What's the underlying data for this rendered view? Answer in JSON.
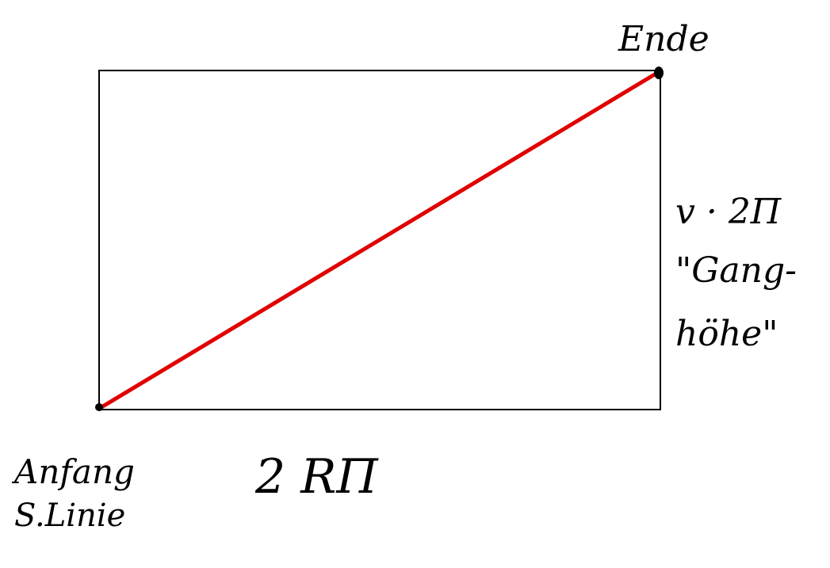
{
  "labels": {
    "end": "Ende",
    "start": "Anfang",
    "start_sub": "S.Linie",
    "bottom": "2 RΠ",
    "right_line1": "v · 2Π",
    "right_line2": "\"Gang-",
    "right_line3": "höhe\""
  },
  "colors": {
    "rectangle": "#000000",
    "diagonal": "#e00000",
    "points": "#000000"
  }
}
